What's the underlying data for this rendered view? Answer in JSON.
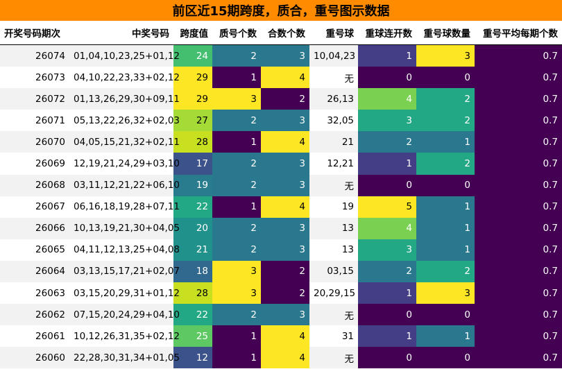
{
  "title": "前区近15期跨度，质合，重号图示数据",
  "headers": [
    "开奖号码期次",
    "中奖号码",
    "跨度值",
    "质号个数",
    "合数个数",
    "重号球",
    "重球连开数",
    "重号球数量",
    "重号平均每期个数"
  ],
  "colors": {
    "title_bg": "#ff8c00",
    "v0": "#440154",
    "v1": "#433e85",
    "v2": "#2a788e",
    "v3": "#22a884",
    "v4": "#7ad151",
    "v5": "#fde725",
    "s12": "#3b528b",
    "s17": "#3b528b",
    "s18": "#31688e",
    "s19": "#287c8e",
    "s20": "#21918c",
    "s21": "#21918c",
    "s22": "#22a884",
    "s24": "#44bf70",
    "s25": "#5ec962",
    "s27": "#a5db36",
    "s28": "#c8e020",
    "s29": "#fde725"
  },
  "rows": [
    {
      "period": "26074",
      "numbers": "01,04,10,23,25+01,12",
      "span": "24",
      "prime": "2",
      "composite": "3",
      "repeat": "10,04,23",
      "streak": "1",
      "repeat_count": "3",
      "avg": "0.7"
    },
    {
      "period": "26073",
      "numbers": "04,10,22,23,33+02,12",
      "span": "29",
      "prime": "1",
      "composite": "4",
      "repeat": "无",
      "streak": "0",
      "repeat_count": "0",
      "avg": "0.7"
    },
    {
      "period": "26072",
      "numbers": "01,13,26,29,30+09,11",
      "span": "29",
      "prime": "3",
      "composite": "2",
      "repeat": "26,13",
      "streak": "4",
      "repeat_count": "2",
      "avg": "0.7"
    },
    {
      "period": "26071",
      "numbers": "05,13,22,26,32+02,03",
      "span": "27",
      "prime": "2",
      "composite": "3",
      "repeat": "32,05",
      "streak": "3",
      "repeat_count": "2",
      "avg": "0.7"
    },
    {
      "period": "26070",
      "numbers": "04,05,15,21,32+02,11",
      "span": "28",
      "prime": "1",
      "composite": "4",
      "repeat": "21",
      "streak": "2",
      "repeat_count": "1",
      "avg": "0.7"
    },
    {
      "period": "26069",
      "numbers": "12,19,21,24,29+03,10",
      "span": "17",
      "prime": "2",
      "composite": "3",
      "repeat": "12,21",
      "streak": "1",
      "repeat_count": "2",
      "avg": "0.7"
    },
    {
      "period": "26068",
      "numbers": "03,11,12,21,22+06,10",
      "span": "19",
      "prime": "2",
      "composite": "3",
      "repeat": "无",
      "streak": "0",
      "repeat_count": "0",
      "avg": "0.7"
    },
    {
      "period": "26067",
      "numbers": "06,16,18,19,28+07,11",
      "span": "22",
      "prime": "1",
      "composite": "4",
      "repeat": "19",
      "streak": "5",
      "repeat_count": "1",
      "avg": "0.7"
    },
    {
      "period": "26066",
      "numbers": "10,13,19,21,30+04,05",
      "span": "20",
      "prime": "2",
      "composite": "3",
      "repeat": "13",
      "streak": "4",
      "repeat_count": "1",
      "avg": "0.7"
    },
    {
      "period": "26065",
      "numbers": "04,11,12,13,25+04,08",
      "span": "21",
      "prime": "2",
      "composite": "3",
      "repeat": "13",
      "streak": "3",
      "repeat_count": "1",
      "avg": "0.7"
    },
    {
      "period": "26064",
      "numbers": "03,13,15,17,21+02,07",
      "span": "18",
      "prime": "3",
      "composite": "2",
      "repeat": "03,15",
      "streak": "2",
      "repeat_count": "2",
      "avg": "0.7"
    },
    {
      "period": "26063",
      "numbers": "03,15,20,29,31+01,12",
      "span": "28",
      "prime": "3",
      "composite": "2",
      "repeat": "20,29,15",
      "streak": "1",
      "repeat_count": "3",
      "avg": "0.7"
    },
    {
      "period": "26062",
      "numbers": "07,15,20,24,29+04,10",
      "span": "22",
      "prime": "2",
      "composite": "3",
      "repeat": "无",
      "streak": "0",
      "repeat_count": "0",
      "avg": "0.7"
    },
    {
      "period": "26061",
      "numbers": "10,12,26,31,35+02,12",
      "span": "25",
      "prime": "1",
      "composite": "4",
      "repeat": "31",
      "streak": "1",
      "repeat_count": "1",
      "avg": "0.7"
    },
    {
      "period": "26060",
      "numbers": "22,28,30,31,34+01,05",
      "span": "12",
      "prime": "1",
      "composite": "4",
      "repeat": "无",
      "streak": "0",
      "repeat_count": "0",
      "avg": "0.7"
    }
  ]
}
